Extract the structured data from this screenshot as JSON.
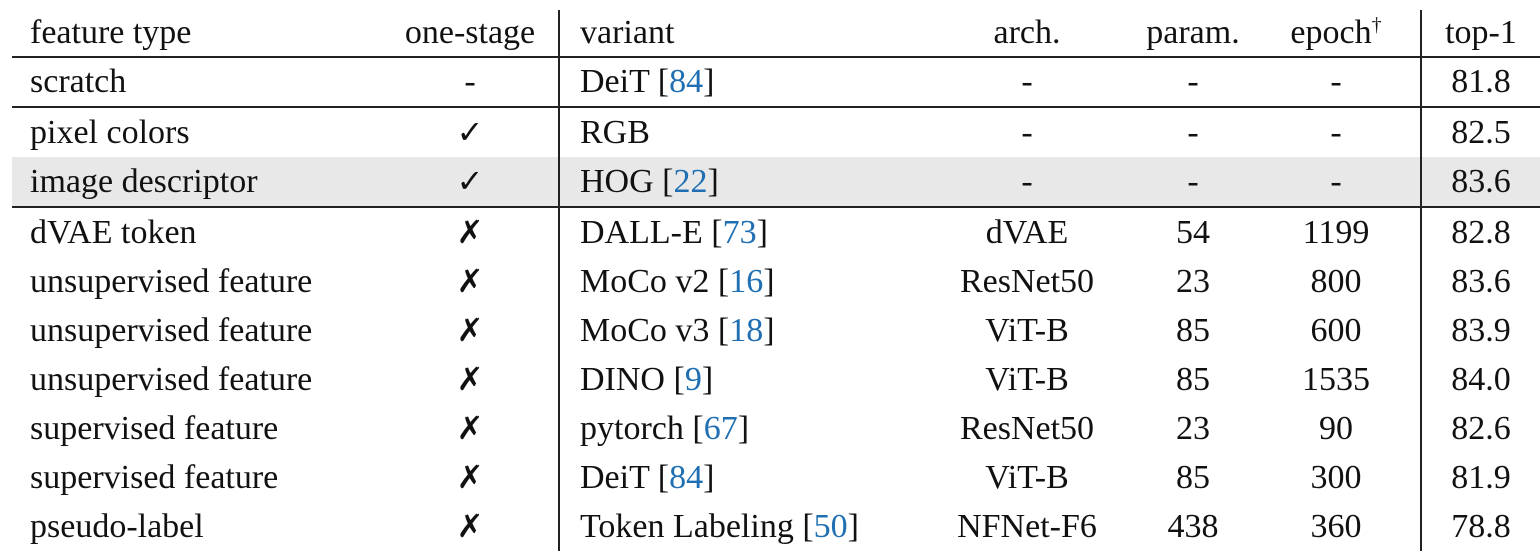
{
  "table": {
    "headers": {
      "feature_type": "feature type",
      "one_stage": "one-stage",
      "variant": "variant",
      "arch": "arch.",
      "param": "param.",
      "epoch": "epoch",
      "epoch_mark": "†",
      "top1": "top-1"
    },
    "rows": [
      {
        "feature_type": "scratch",
        "one_stage": "-",
        "variant_name": "DeiT [",
        "variant_ref": "84",
        "variant_close": "]",
        "arch": "-",
        "param": "-",
        "epoch": "-",
        "top1": "81.8"
      },
      {
        "feature_type": "pixel colors",
        "one_stage": "✓",
        "variant_name": "RGB",
        "variant_ref": "",
        "variant_close": "",
        "arch": "-",
        "param": "-",
        "epoch": "-",
        "top1": "82.5"
      },
      {
        "feature_type": "image descriptor",
        "one_stage": "✓",
        "variant_name": "HOG [",
        "variant_ref": "22",
        "variant_close": "]",
        "arch": "-",
        "param": "-",
        "epoch": "-",
        "top1": "83.6"
      },
      {
        "feature_type": "dVAE token",
        "one_stage": "✗",
        "variant_name": "DALL-E [",
        "variant_ref": "73",
        "variant_close": "]",
        "arch": "dVAE",
        "param": "54",
        "epoch": "1199",
        "top1": "82.8"
      },
      {
        "feature_type": "unsupervised feature",
        "one_stage": "✗",
        "variant_name": "MoCo v2 [",
        "variant_ref": "16",
        "variant_close": "]",
        "arch": "ResNet50",
        "param": "23",
        "epoch": "800",
        "top1": "83.6"
      },
      {
        "feature_type": "unsupervised feature",
        "one_stage": "✗",
        "variant_name": "MoCo v3 [",
        "variant_ref": "18",
        "variant_close": "]",
        "arch": "ViT-B",
        "param": "85",
        "epoch": "600",
        "top1": "83.9"
      },
      {
        "feature_type": "unsupervised feature",
        "one_stage": "✗",
        "variant_name": "DINO [",
        "variant_ref": "9",
        "variant_close": "]",
        "arch": "ViT-B",
        "param": "85",
        "epoch": "1535",
        "top1": "84.0"
      },
      {
        "feature_type": "supervised feature",
        "one_stage": "✗",
        "variant_name": "pytorch [",
        "variant_ref": "67",
        "variant_close": "]",
        "arch": "ResNet50",
        "param": "23",
        "epoch": "90",
        "top1": "82.6"
      },
      {
        "feature_type": "supervised feature",
        "one_stage": "✗",
        "variant_name": "DeiT [",
        "variant_ref": "84",
        "variant_close": "]",
        "arch": "ViT-B",
        "param": "85",
        "epoch": "300",
        "top1": "81.9"
      },
      {
        "feature_type": "pseudo-label",
        "one_stage": "✗",
        "variant_name": "Token Labeling [",
        "variant_ref": "50",
        "variant_close": "]",
        "arch": "NFNet-F6",
        "param": "438",
        "epoch": "360",
        "top1": "78.8"
      }
    ]
  }
}
